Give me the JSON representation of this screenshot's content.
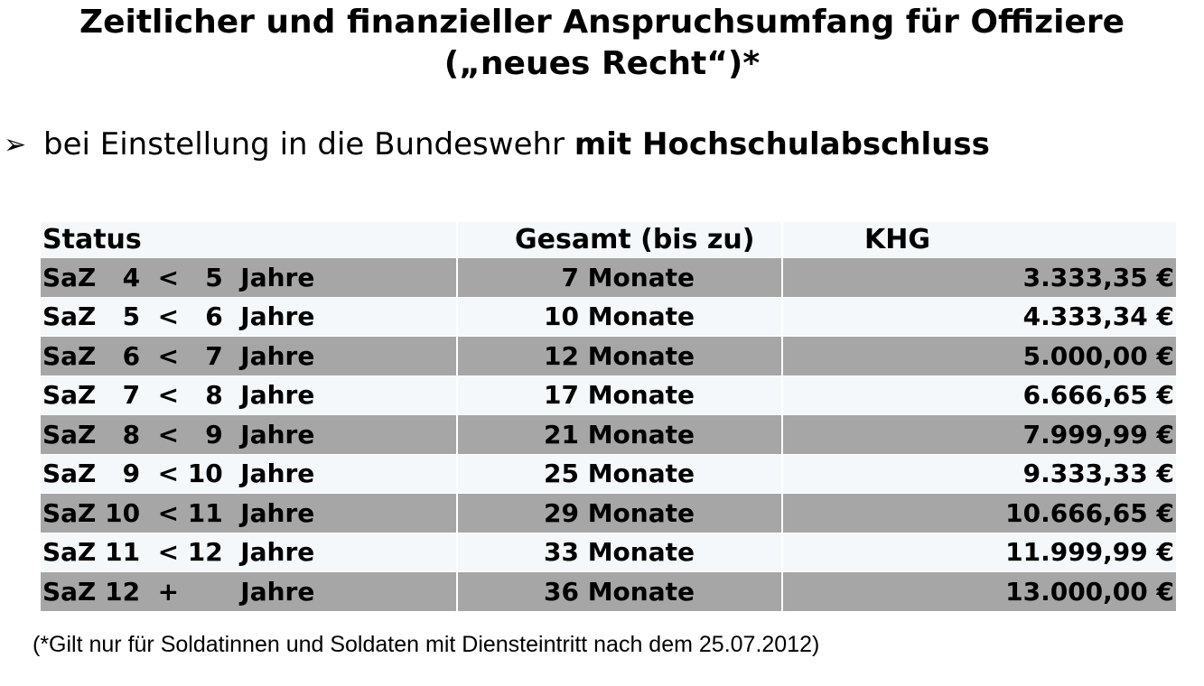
{
  "title": {
    "line1": "Zeitlicher und finanzieller Anspruchsumfang für Offiziere",
    "line2": "(„neues Recht“)*"
  },
  "bullet": {
    "icon": "arrow-bullet-icon",
    "text": "bei Einstellung in die Bundeswehr ",
    "bold_text": "mit Hochschulabschluss"
  },
  "table": {
    "headers": [
      "Status",
      "Gesamt (bis zu)",
      "KHG"
    ],
    "rows": [
      {
        "status": "SaZ   4  <   5  Jahre",
        "total": "7 Monate",
        "khg": "3.333,35 €"
      },
      {
        "status": "SaZ   5  <   6  Jahre",
        "total": "10 Monate",
        "khg": "4.333,34 €"
      },
      {
        "status": "SaZ   6  <   7  Jahre",
        "total": "12 Monate",
        "khg": "5.000,00 €"
      },
      {
        "status": "SaZ   7  <   8  Jahre",
        "total": "17 Monate",
        "khg": "6.666,65 €"
      },
      {
        "status": "SaZ   8  <   9  Jahre",
        "total": "21 Monate",
        "khg": "7.999,99 €"
      },
      {
        "status": "SaZ   9  < 10  Jahre",
        "total": "25 Monate",
        "khg": "9.333,33 €"
      },
      {
        "status": "SaZ 10  < 11  Jahre",
        "total": "29 Monate",
        "khg": "10.666,65 €"
      },
      {
        "status": "SaZ 11  < 12  Jahre",
        "total": "33 Monate",
        "khg": "11.999,99 €"
      },
      {
        "status": "SaZ 12  +       Jahre",
        "total": "36 Monate",
        "khg": "13.000,00 €"
      }
    ]
  },
  "footnote": "(*Gilt nur für Soldatinnen und Soldaten mit Diensteintritt nach dem 25.07.2012)",
  "colors": {
    "row_dark": "#a6a6a6",
    "row_light": "#f4f8fa"
  }
}
